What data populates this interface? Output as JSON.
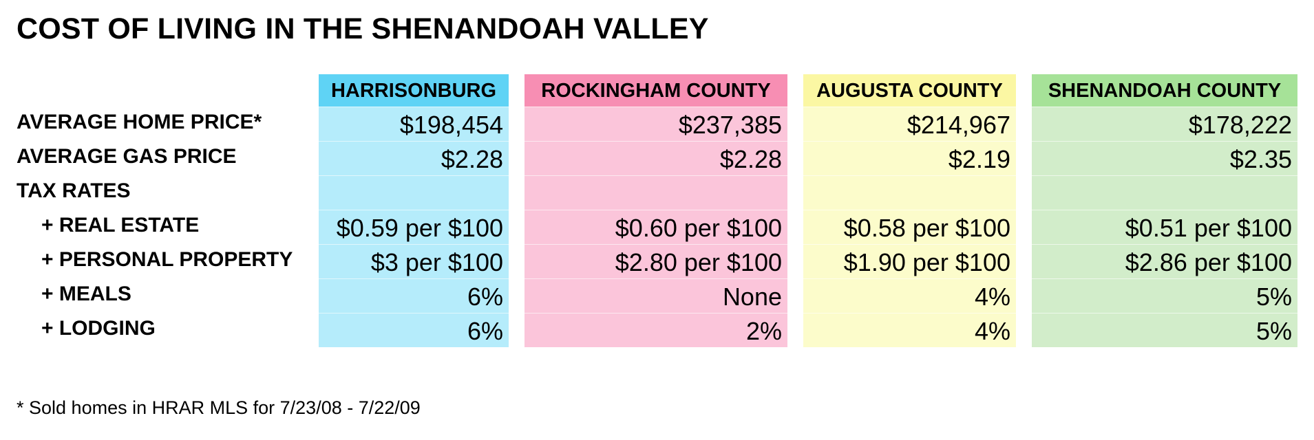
{
  "title": "COST OF LIVING IN THE SHENANDOAH VALLEY",
  "row_labels": [
    "AVERAGE HOME PRICE*",
    "AVERAGE GAS PRICE",
    "TAX RATES",
    "+ REAL ESTATE",
    "+ PERSONAL PROPERTY",
    "+ MEALS",
    "+ LODGING"
  ],
  "columns": [
    {
      "header": "HARRISONBURG",
      "header_color": "#5fd3f5",
      "body_color": "#b5ecfb",
      "values": [
        "$198,454",
        "$2.28",
        "",
        "$0.59 per $100",
        "$3 per $100",
        "6%",
        "6%"
      ]
    },
    {
      "header": "ROCKINGHAM COUNTY",
      "header_color": "#f78eb3",
      "body_color": "#fbc5da",
      "values": [
        "$237,385",
        "$2.28",
        "",
        "$0.60 per $100",
        "$2.80 per $100",
        "None",
        "2%"
      ]
    },
    {
      "header": "AUGUSTA COUNTY",
      "header_color": "#fbf7a3",
      "body_color": "#fcfccb",
      "values": [
        "$214,967",
        "$2.19",
        "",
        "$0.58 per $100",
        "$1.90 per $100",
        "4%",
        "4%"
      ]
    },
    {
      "header": "SHENANDOAH COUNTY",
      "header_color": "#a6e298",
      "body_color": "#d2edca",
      "values": [
        "$178,222",
        "$2.35",
        "",
        "$0.51 per $100",
        "$2.86 per $100",
        "5%",
        "5%"
      ]
    }
  ],
  "footnote": "* Sold homes in HRAR MLS for 7/23/08 - 7/22/09"
}
